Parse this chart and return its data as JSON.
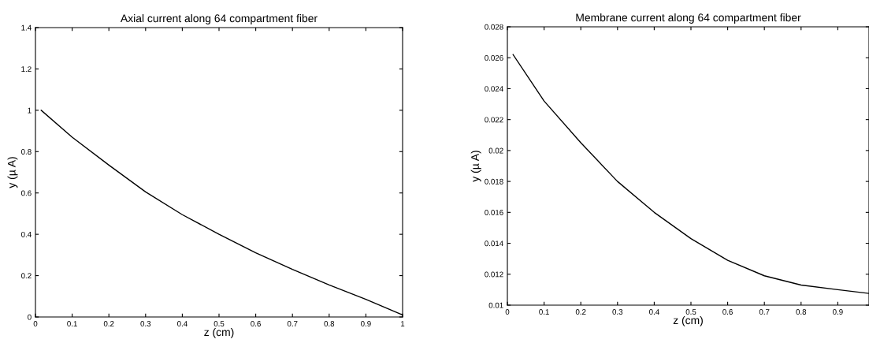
{
  "chart_data": [
    {
      "type": "line",
      "title": "Axial current along 64 compartment fiber",
      "xlabel": "z (cm)",
      "ylabel": "y (µ A)",
      "x": [
        0.0156,
        0.1,
        0.2,
        0.3,
        0.4,
        0.5,
        0.6,
        0.7,
        0.8,
        0.9,
        1.0
      ],
      "series": [
        {
          "color": "#000000",
          "values": [
            1.0,
            0.87,
            0.735,
            0.605,
            0.495,
            0.4,
            0.31,
            0.23,
            0.155,
            0.085,
            0.01
          ]
        }
      ],
      "xlim": [
        0,
        1
      ],
      "xticks": [
        0,
        0.1,
        0.2,
        0.3,
        0.4,
        0.5,
        0.6,
        0.7,
        0.8,
        0.9,
        1
      ],
      "ylim": [
        0,
        1.4
      ],
      "yticks": [
        0,
        0.2,
        0.4,
        0.6,
        0.8,
        1,
        1.2,
        1.4
      ],
      "grid": false,
      "legend": false
    },
    {
      "type": "line",
      "title": "Membrane current along 64 compartment fiber",
      "xlabel": "z (cm)",
      "ylabel": "y (µ A)",
      "x": [
        0.0156,
        0.1,
        0.2,
        0.3,
        0.4,
        0.5,
        0.6,
        0.7,
        0.8,
        0.9,
        0.985
      ],
      "series": [
        {
          "color": "#000000",
          "values": [
            0.0262,
            0.0232,
            0.0205,
            0.018,
            0.016,
            0.0143,
            0.0129,
            0.0119,
            0.0113,
            0.011,
            0.01076
          ]
        }
      ],
      "xlim": [
        0,
        0.985
      ],
      "xticks": [
        0,
        0.1,
        0.2,
        0.3,
        0.4,
        0.5,
        0.6,
        0.7,
        0.8,
        0.9
      ],
      "ylim": [
        0.01,
        0.028
      ],
      "yticks": [
        0.01,
        0.012,
        0.014,
        0.016,
        0.018,
        0.02,
        0.022,
        0.024,
        0.026,
        0.028
      ],
      "grid": false,
      "legend": false
    }
  ]
}
